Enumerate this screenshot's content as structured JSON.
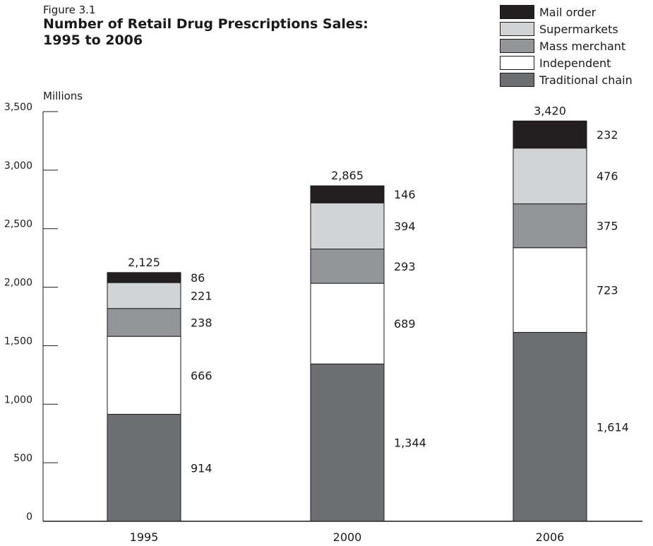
{
  "figure_label": "Figure 3.1",
  "title_line1": "Number of Retail Drug Prescriptions Sales:",
  "title_line2": "1995 to 2006",
  "units_label": "Millions",
  "legend": [
    {
      "label": "Mail order",
      "color": "#231f20"
    },
    {
      "label": "Supermarkets",
      "color": "#d1d3d4"
    },
    {
      "label": "Mass merchant",
      "color": "#939598"
    },
    {
      "label": "Independent",
      "color": "#ffffff"
    },
    {
      "label": "Traditional chain",
      "color": "#6d6e71"
    }
  ],
  "chart_data": {
    "type": "bar",
    "stacked": true,
    "categories": [
      "1995",
      "2000",
      "2006"
    ],
    "series": [
      {
        "name": "Traditional chain",
        "color": "#6d6e71",
        "values": [
          914,
          1344,
          1614
        ],
        "labels": [
          "914",
          "1,344",
          "1,614"
        ]
      },
      {
        "name": "Independent",
        "color": "#ffffff",
        "values": [
          666,
          689,
          723
        ],
        "labels": [
          "666",
          "689",
          "723"
        ]
      },
      {
        "name": "Mass merchant",
        "color": "#939598",
        "values": [
          238,
          293,
          375
        ],
        "labels": [
          "238",
          "293",
          "375"
        ]
      },
      {
        "name": "Supermarkets",
        "color": "#d1d3d4",
        "values": [
          221,
          394,
          476
        ],
        "labels": [
          "221",
          "394",
          "476"
        ]
      },
      {
        "name": "Mail order",
        "color": "#231f20",
        "values": [
          86,
          146,
          232
        ],
        "labels": [
          "86",
          "146",
          "232"
        ]
      }
    ],
    "totals": [
      2125,
      2865,
      3420
    ],
    "total_labels": [
      "2,125",
      "2,865",
      "3,420"
    ],
    "ylim": [
      0,
      3500
    ],
    "yticks": [
      0,
      500,
      1000,
      1500,
      2000,
      2500,
      3000,
      3500
    ],
    "ytick_labels": [
      "0",
      "500",
      "1,000",
      "1,500",
      "2,000",
      "2,500",
      "3,000",
      "3,500"
    ],
    "grid": false,
    "legend_position": "top-right"
  }
}
